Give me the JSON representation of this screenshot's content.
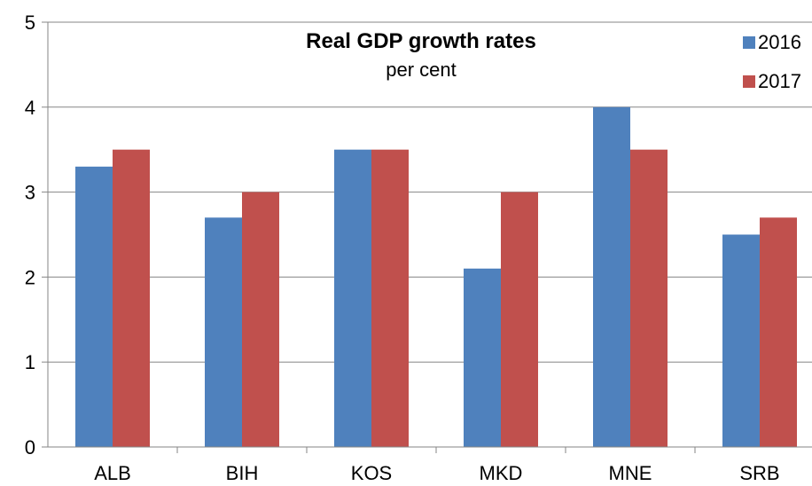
{
  "chart_data": {
    "type": "bar",
    "title": "Real GDP growth rates",
    "subtitle": "per cent",
    "categories": [
      "ALB",
      "BIH",
      "KOS",
      "MKD",
      "MNE",
      "SRB"
    ],
    "series": [
      {
        "name": "2016",
        "color": "#4f81bd",
        "values": [
          3.3,
          2.7,
          3.5,
          2.1,
          4.0,
          2.5
        ]
      },
      {
        "name": "2017",
        "color": "#c0504d",
        "values": [
          3.5,
          3.0,
          3.5,
          3.0,
          3.5,
          2.7
        ]
      }
    ],
    "ylim": [
      0,
      5
    ],
    "yticks": [
      "0",
      "1",
      "2",
      "3",
      "4",
      "5"
    ],
    "xlabel": "",
    "ylabel": "",
    "grid": true,
    "legend_position": "top-right"
  }
}
